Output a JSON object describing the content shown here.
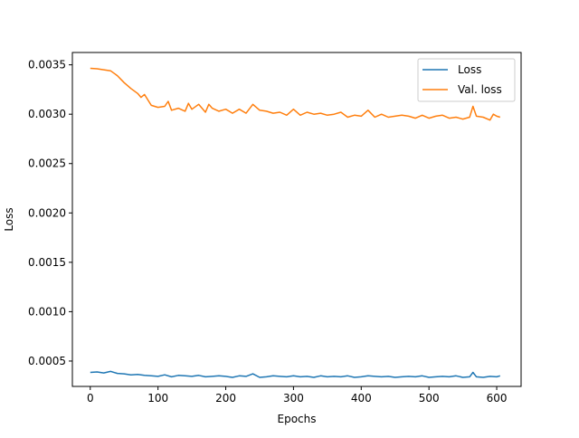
{
  "chart_data": {
    "type": "line",
    "title": "",
    "xlabel": "Epochs",
    "ylabel": "Loss",
    "xlim": [
      -26.4,
      636
    ],
    "ylim": [
      0.000243,
      0.003625
    ],
    "xticks": [
      0,
      100,
      200,
      300,
      400,
      500,
      600
    ],
    "xtick_labels": [
      "0",
      "100",
      "200",
      "300",
      "400",
      "500",
      "600"
    ],
    "yticks": [
      0.0005,
      0.001,
      0.0015,
      0.002,
      0.0025,
      0.003,
      0.0035
    ],
    "ytick_labels": [
      "0.0005",
      "0.0010",
      "0.0015",
      "0.0020",
      "0.0025",
      "0.0030",
      "0.0035"
    ],
    "grid": false,
    "legend_position": "top-right",
    "series": [
      {
        "name": "Loss",
        "color": "#1f77b4",
        "x": [
          0,
          10,
          20,
          30,
          40,
          50,
          60,
          70,
          80,
          90,
          100,
          110,
          120,
          130,
          140,
          150,
          160,
          170,
          180,
          190,
          200,
          210,
          220,
          230,
          240,
          250,
          260,
          270,
          280,
          290,
          300,
          310,
          320,
          330,
          340,
          350,
          360,
          370,
          380,
          390,
          400,
          410,
          420,
          430,
          440,
          450,
          460,
          470,
          480,
          490,
          500,
          510,
          520,
          530,
          540,
          550,
          560,
          565,
          570,
          580,
          590,
          600,
          605
        ],
        "y": [
          0.000385,
          0.00039,
          0.00038,
          0.000395,
          0.000375,
          0.00037,
          0.00036,
          0.000365,
          0.000355,
          0.00035,
          0.000345,
          0.00036,
          0.00034,
          0.000355,
          0.00035,
          0.000345,
          0.000355,
          0.00034,
          0.000345,
          0.00035,
          0.000345,
          0.000335,
          0.00035,
          0.000345,
          0.00037,
          0.000335,
          0.00034,
          0.00035,
          0.000345,
          0.00034,
          0.00035,
          0.00034,
          0.000345,
          0.000335,
          0.00035,
          0.00034,
          0.000345,
          0.00034,
          0.00035,
          0.000335,
          0.00034,
          0.00035,
          0.000345,
          0.00034,
          0.000345,
          0.000335,
          0.00034,
          0.000345,
          0.00034,
          0.00035,
          0.000335,
          0.00034,
          0.000345,
          0.00034,
          0.00035,
          0.000335,
          0.00034,
          0.000385,
          0.00034,
          0.000335,
          0.000345,
          0.00034,
          0.00035
        ]
      },
      {
        "name": "Val. loss",
        "color": "#ff7f0e",
        "x": [
          0,
          10,
          20,
          30,
          40,
          50,
          60,
          70,
          75,
          80,
          90,
          100,
          110,
          115,
          120,
          130,
          140,
          145,
          150,
          160,
          170,
          175,
          180,
          190,
          200,
          210,
          220,
          230,
          240,
          250,
          260,
          270,
          280,
          290,
          300,
          310,
          320,
          330,
          340,
          350,
          360,
          370,
          380,
          390,
          400,
          410,
          420,
          430,
          440,
          450,
          460,
          470,
          480,
          490,
          500,
          510,
          520,
          530,
          540,
          550,
          560,
          565,
          570,
          580,
          590,
          595,
          600,
          605
        ],
        "y": [
          0.003465,
          0.00346,
          0.00345,
          0.00344,
          0.00339,
          0.00332,
          0.00326,
          0.00321,
          0.00317,
          0.0032,
          0.00309,
          0.00307,
          0.00308,
          0.00313,
          0.00304,
          0.00306,
          0.00303,
          0.00311,
          0.00305,
          0.0031,
          0.00302,
          0.0031,
          0.00306,
          0.00303,
          0.00305,
          0.00301,
          0.00305,
          0.00301,
          0.0031,
          0.00304,
          0.00303,
          0.00301,
          0.00302,
          0.00299,
          0.00305,
          0.00299,
          0.00302,
          0.003,
          0.00301,
          0.00299,
          0.003,
          0.00302,
          0.00297,
          0.00299,
          0.00298,
          0.00304,
          0.00297,
          0.003,
          0.00297,
          0.00298,
          0.00299,
          0.00298,
          0.00296,
          0.00299,
          0.00296,
          0.00298,
          0.00299,
          0.00296,
          0.00297,
          0.00295,
          0.00297,
          0.00308,
          0.00298,
          0.00297,
          0.00294,
          0.003,
          0.00298,
          0.00297
        ]
      }
    ]
  }
}
